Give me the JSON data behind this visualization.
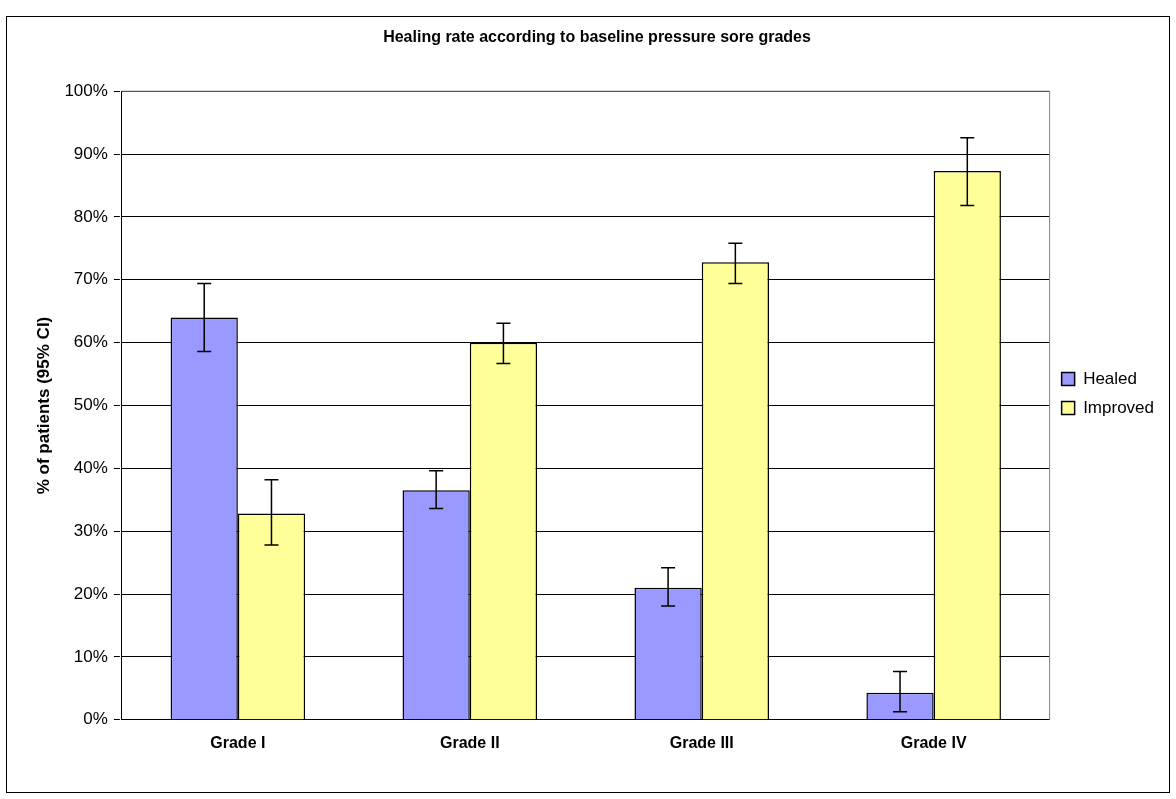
{
  "chart_data": {
    "type": "bar",
    "title": "Healing rate according to baseline pressure sore grades",
    "ylabel": "% of patients (95% CI)",
    "categories": [
      "Grade I",
      "Grade II",
      "Grade III",
      "Grade IV"
    ],
    "series": [
      {
        "name": "Healed",
        "color": "#9999ff",
        "values": [
          64.0,
          36.5,
          21.0,
          4.3
        ],
        "errors": [
          [
            58.6,
            69.4
          ],
          [
            33.6,
            39.6
          ],
          [
            18.1,
            24.2
          ],
          [
            1.3,
            7.7
          ]
        ]
      },
      {
        "name": "Improved",
        "color": "#ffff99",
        "values": [
          32.8,
          60.0,
          72.8,
          87.3
        ],
        "errors": [
          [
            27.8,
            38.2
          ],
          [
            56.7,
            63.1
          ],
          [
            69.4,
            75.8
          ],
          [
            81.8,
            92.6
          ]
        ]
      }
    ],
    "ylim": [
      0,
      100
    ],
    "yticks": [
      {
        "value": 0,
        "label": "0%"
      },
      {
        "value": 10,
        "label": "10%"
      },
      {
        "value": 20,
        "label": "20%"
      },
      {
        "value": 30,
        "label": "30%"
      },
      {
        "value": 40,
        "label": "40%"
      },
      {
        "value": 50,
        "label": "50%"
      },
      {
        "value": 60,
        "label": "60%"
      },
      {
        "value": 70,
        "label": "70%"
      },
      {
        "value": 80,
        "label": "80%"
      },
      {
        "value": 90,
        "label": "90%"
      },
      {
        "value": 100,
        "label": "100%"
      }
    ],
    "grid": "y",
    "legend": "right"
  }
}
